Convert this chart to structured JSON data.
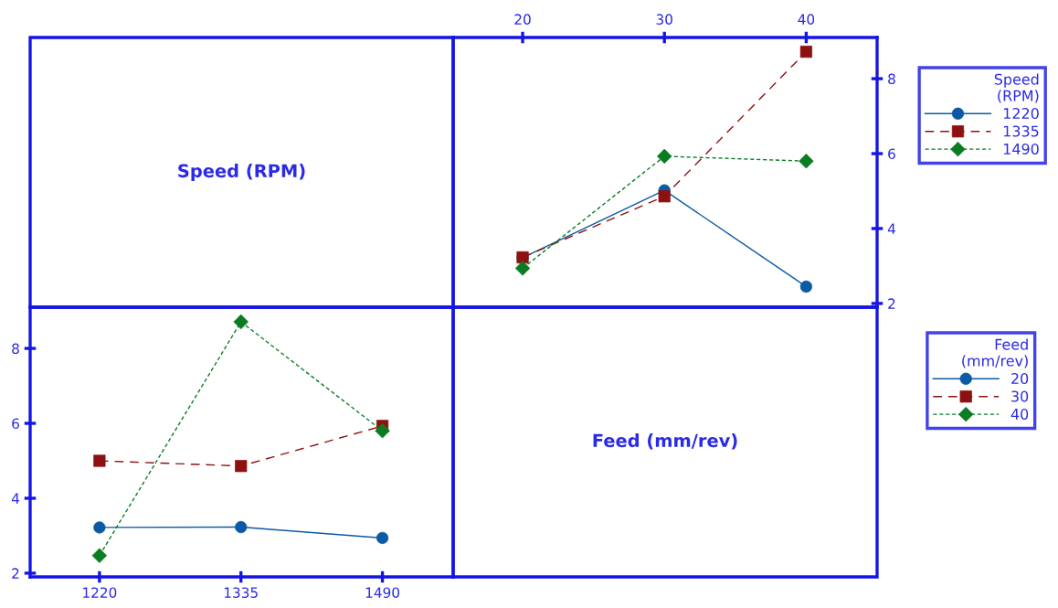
{
  "chart_data": [
    {
      "type": "line",
      "xlabel": "Feed (mm/rev)",
      "categories": [
        "20",
        "30",
        "40"
      ],
      "legend_title": "Speed\n(RPM)",
      "legend": "right",
      "ylim": [
        1.9,
        9.1
      ],
      "yticks": [
        2,
        4,
        6,
        8
      ],
      "grid": false,
      "series": [
        {
          "name": "1220",
          "color": "#0b5aa6",
          "marker": "circle",
          "line_style": "solid",
          "values": [
            3.22,
            5.02,
            2.45
          ]
        },
        {
          "name": "1335",
          "color": "#8e1111",
          "marker": "square",
          "line_style": "dashed",
          "values": [
            3.23,
            4.86,
            8.72
          ]
        },
        {
          "name": "1490",
          "color": "#0a7d22",
          "marker": "diamond",
          "line_style": "dotted",
          "values": [
            2.94,
            5.93,
            5.8
          ]
        }
      ]
    },
    {
      "type": "line",
      "xlabel": "Speed (RPM)",
      "categories": [
        "1220",
        "1335",
        "1490"
      ],
      "legend_title": "Feed\n(mm/rev)",
      "legend": "right",
      "ylim": [
        1.9,
        9.1
      ],
      "yticks": [
        2,
        4,
        6,
        8
      ],
      "grid": false,
      "series": [
        {
          "name": "20",
          "color": "#0b5aa6",
          "marker": "circle",
          "line_style": "solid",
          "values": [
            3.22,
            3.23,
            2.94
          ]
        },
        {
          "name": "30",
          "color": "#8e1111",
          "marker": "square",
          "line_style": "dashed",
          "values": [
            5.0,
            4.86,
            5.93
          ]
        },
        {
          "name": "40",
          "color": "#0a7d22",
          "marker": "diamond",
          "line_style": "dotted",
          "values": [
            2.47,
            8.71,
            5.8
          ]
        }
      ]
    }
  ]
}
